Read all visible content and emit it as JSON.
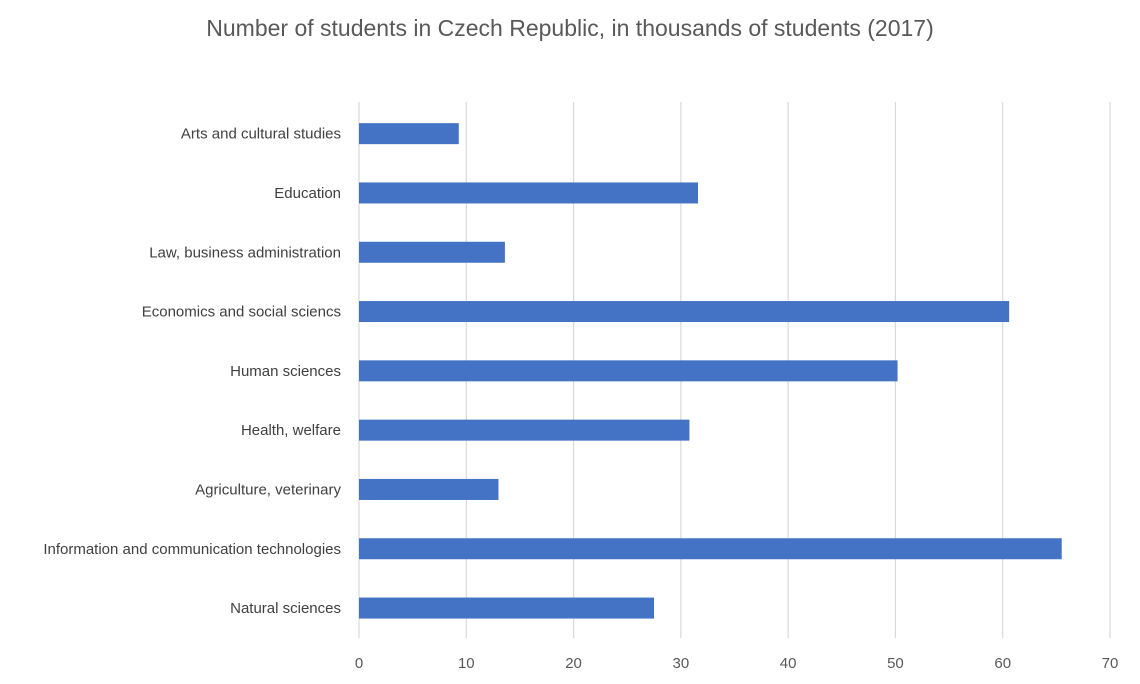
{
  "chart_data": {
    "type": "bar",
    "orientation": "horizontal",
    "title": "Number of students in Czech Republic, in thousands of students (2017)",
    "xlabel": "",
    "ylabel": "",
    "categories": [
      "Arts and cultural studies",
      "Education",
      "Law, business administration",
      "Economics and social sciencs",
      "Human sciences",
      "Health, welfare",
      "Agriculture, veterinary",
      "Information and communication technologies",
      "Natural sciences"
    ],
    "values": [
      9.3,
      31.6,
      13.6,
      60.6,
      50.2,
      30.8,
      13.0,
      65.5,
      27.5
    ],
    "xlim": [
      0,
      70
    ],
    "xticks": [
      "0",
      "10",
      "20",
      "30",
      "40",
      "50",
      "60",
      "70"
    ],
    "bar_color": "#4472c4",
    "grid": true,
    "legend": "none"
  }
}
